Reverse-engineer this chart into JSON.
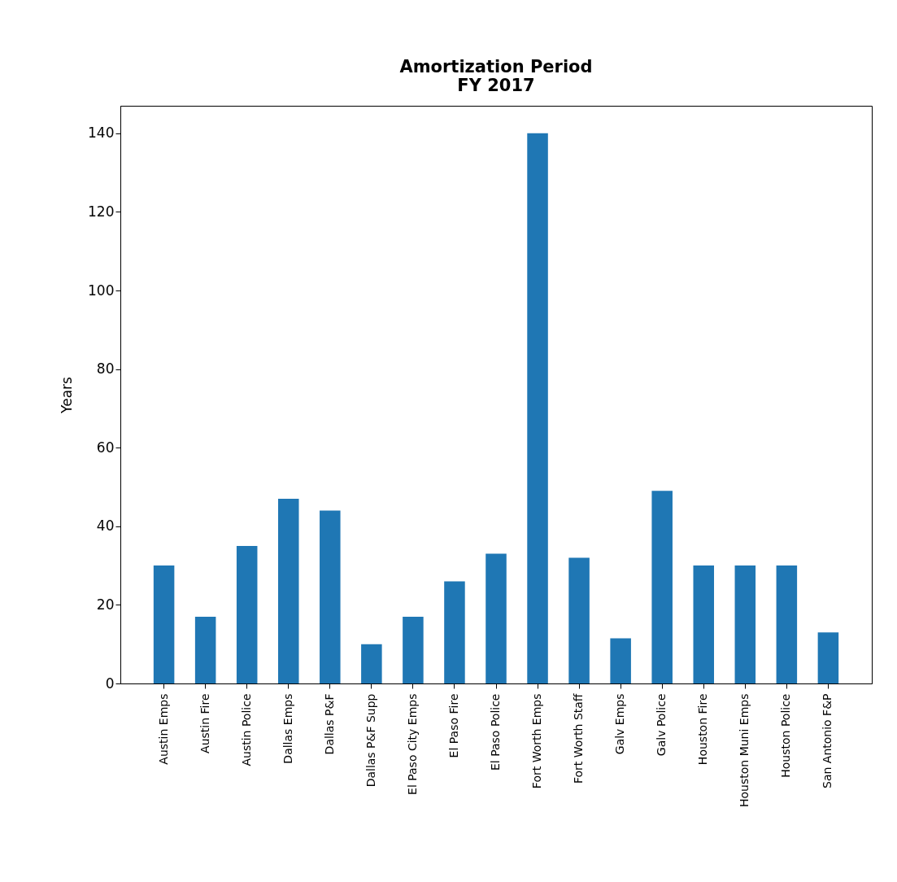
{
  "chart_data": {
    "type": "bar",
    "title": "Amortization Period\nFY 2017",
    "ylabel": "Years",
    "categories": [
      "Austin Emps",
      "Austin Fire",
      "Austin Police",
      "Dallas Emps",
      "Dallas P&F",
      "Dallas P&F Supp",
      "El Paso City Emps",
      "El Paso Fire",
      "El Paso Police",
      "Fort Worth Emps",
      "Fort Worth Staff",
      "Galv Emps",
      "Galv Police",
      "Houston Fire",
      "Houston Muni Emps",
      "Houston Police",
      "San Antonio F&P"
    ],
    "values": [
      30,
      17,
      35,
      47,
      44,
      10,
      17,
      26,
      33,
      140,
      32,
      11.5,
      49,
      30,
      30,
      30,
      13
    ],
    "color": "#1f77b4",
    "ylim": [
      0,
      147
    ],
    "yticks": [
      0,
      20,
      40,
      60,
      80,
      100,
      120,
      140
    ],
    "grid": false
  }
}
